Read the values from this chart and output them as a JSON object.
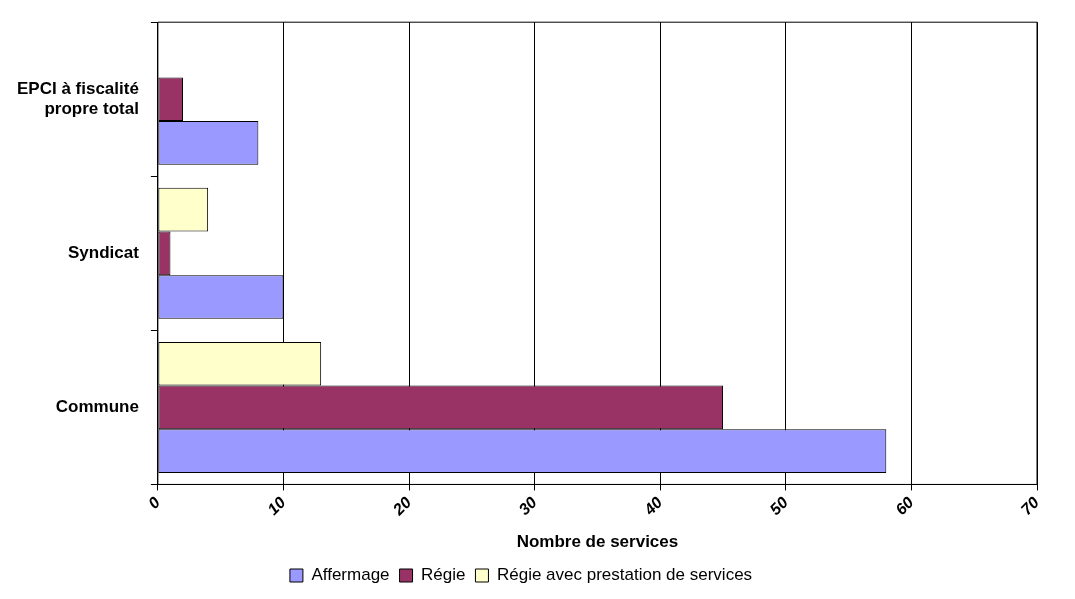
{
  "chart_data": {
    "type": "bar",
    "orientation": "horizontal",
    "xlabel": "Nombre de services",
    "categories": [
      "EPCI à fiscalité propre total",
      "Syndicat",
      "Commune"
    ],
    "series": [
      {
        "name": "Affermage",
        "color": "#9999ff",
        "values": [
          8,
          10,
          58
        ]
      },
      {
        "name": "Régie",
        "color": "#993366",
        "values": [
          2,
          1,
          45
        ]
      },
      {
        "name": "Régie avec prestation de services",
        "color": "#ffffcc",
        "values": [
          null,
          4,
          13
        ]
      }
    ],
    "xlim": [
      0,
      70
    ],
    "xticks": [
      0,
      10,
      20,
      30,
      40,
      50,
      60,
      70
    ],
    "grid": "x",
    "legend": "bottom"
  }
}
